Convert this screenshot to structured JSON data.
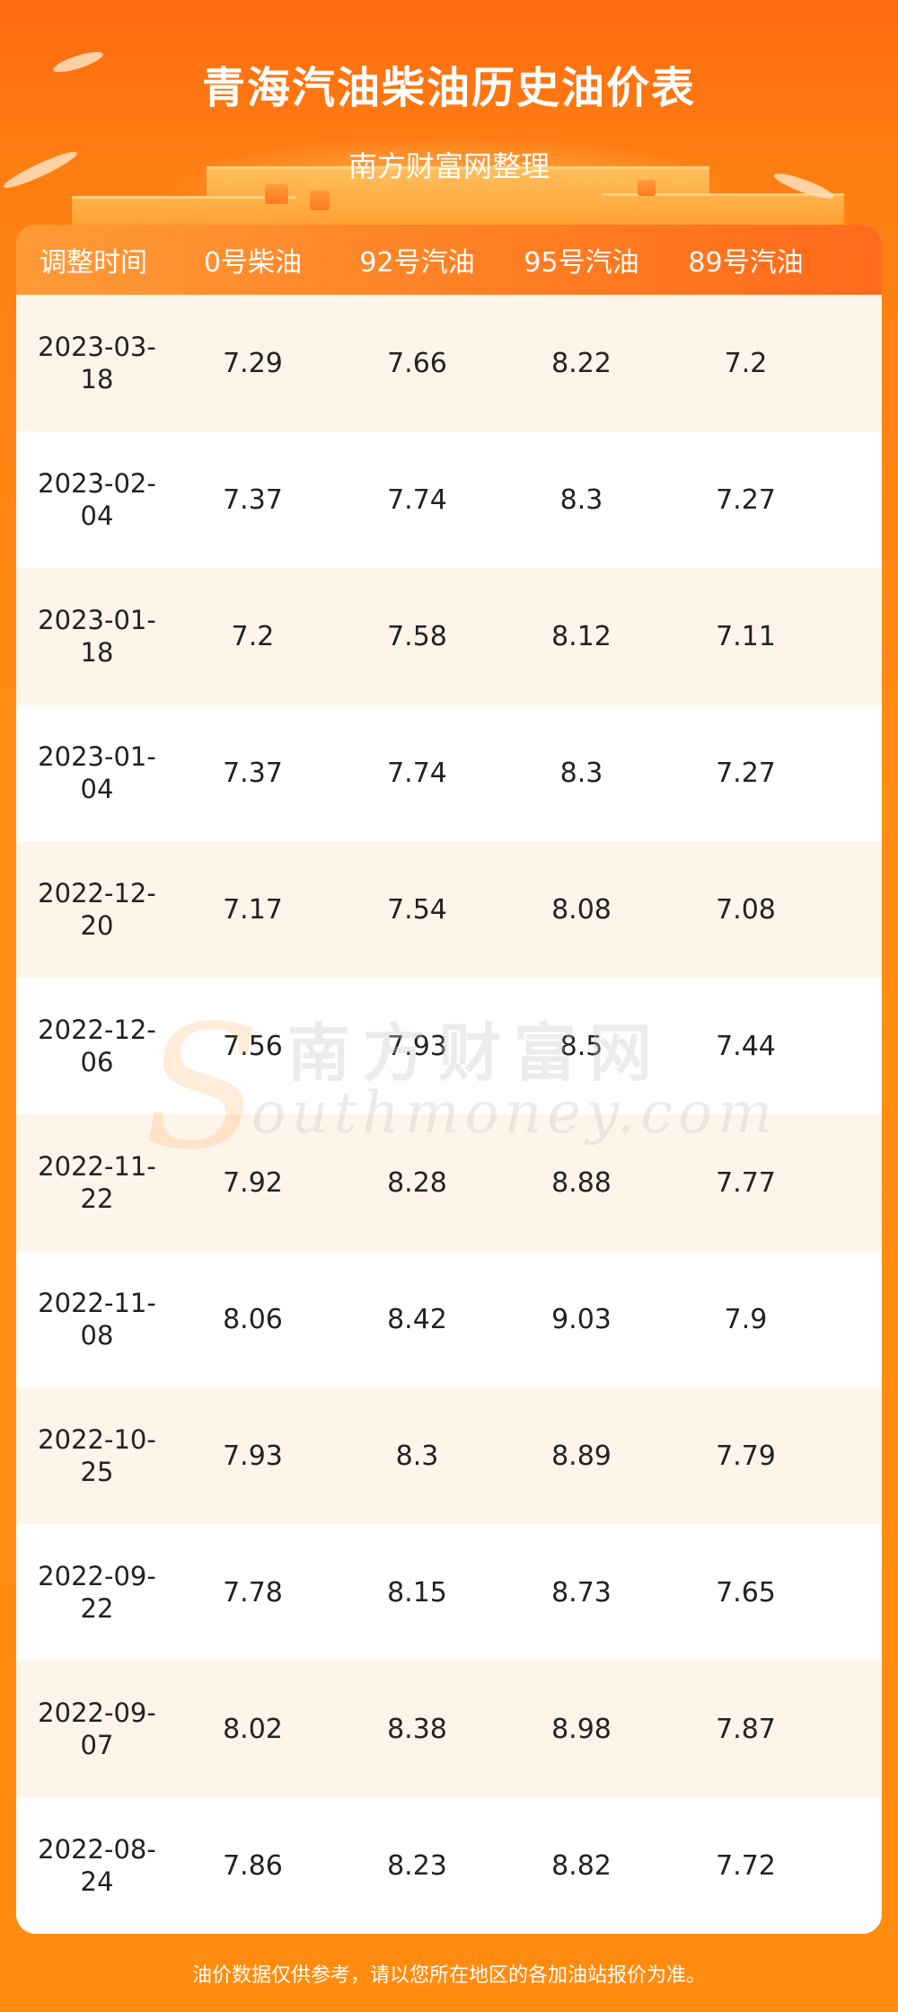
{
  "header": {
    "title": "青海汽油柴油历史油价表",
    "subtitle": "南方财富网整理"
  },
  "table": {
    "columns": [
      "调整时间",
      "0号柴油",
      "92号汽油",
      "95号汽油",
      "89号汽油"
    ],
    "rows": [
      {
        "date": "2023-03-18",
        "diesel0": "7.29",
        "gas92": "7.66",
        "gas95": "8.22",
        "gas89": "7.2"
      },
      {
        "date": "2023-02-04",
        "diesel0": "7.37",
        "gas92": "7.74",
        "gas95": "8.3",
        "gas89": "7.27"
      },
      {
        "date": "2023-01-18",
        "diesel0": "7.2",
        "gas92": "7.58",
        "gas95": "8.12",
        "gas89": "7.11"
      },
      {
        "date": "2023-01-04",
        "diesel0": "7.37",
        "gas92": "7.74",
        "gas95": "8.3",
        "gas89": "7.27"
      },
      {
        "date": "2022-12-20",
        "diesel0": "7.17",
        "gas92": "7.54",
        "gas95": "8.08",
        "gas89": "7.08"
      },
      {
        "date": "2022-12-06",
        "diesel0": "7.56",
        "gas92": "7.93",
        "gas95": "8.5",
        "gas89": "7.44"
      },
      {
        "date": "2022-11-22",
        "diesel0": "7.92",
        "gas92": "8.28",
        "gas95": "8.88",
        "gas89": "7.77"
      },
      {
        "date": "2022-11-08",
        "diesel0": "8.06",
        "gas92": "8.42",
        "gas95": "9.03",
        "gas89": "7.9"
      },
      {
        "date": "2022-10-25",
        "diesel0": "7.93",
        "gas92": "8.3",
        "gas95": "8.89",
        "gas89": "7.79"
      },
      {
        "date": "2022-09-22",
        "diesel0": "7.78",
        "gas92": "8.15",
        "gas95": "8.73",
        "gas89": "7.65"
      },
      {
        "date": "2022-09-07",
        "diesel0": "8.02",
        "gas92": "8.38",
        "gas95": "8.98",
        "gas89": "7.87"
      },
      {
        "date": "2022-08-24",
        "diesel0": "7.86",
        "gas92": "8.23",
        "gas95": "8.82",
        "gas89": "7.72"
      }
    ]
  },
  "watermark": {
    "cn": "南方财富网",
    "en": "outhmoney.com",
    "s": "S"
  },
  "footer": {
    "note": "油价数据仅供参考，请以您所在地区的各加油站报价为准。"
  },
  "colors": {
    "header_orange": "#ff7d22",
    "row_tint": "#fff4ea"
  }
}
